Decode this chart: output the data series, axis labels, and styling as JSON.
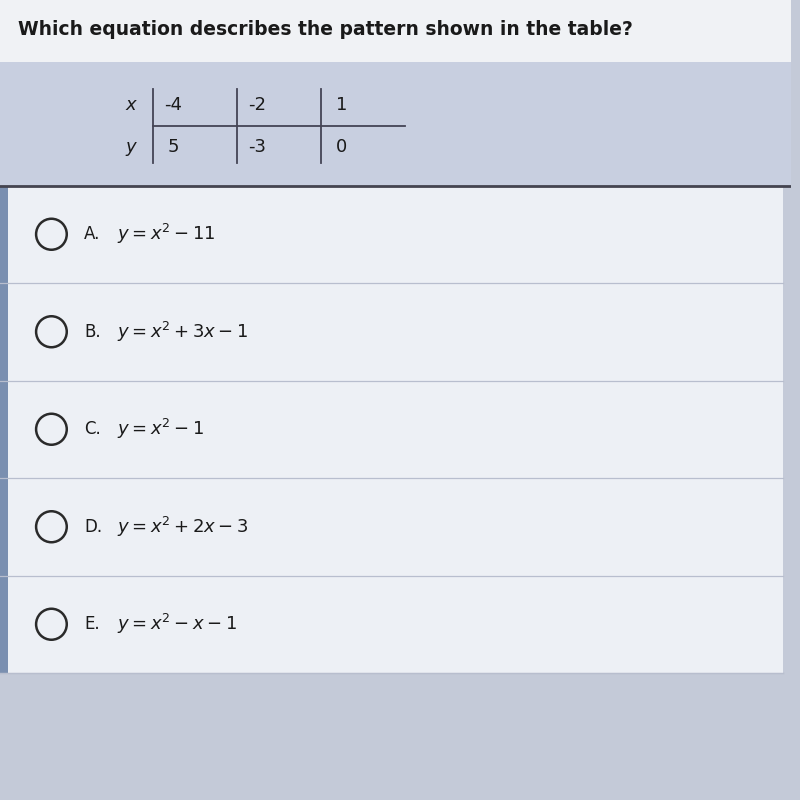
{
  "title": "Which equation describes the pattern shown in the table?",
  "title_fontsize": 13.5,
  "title_color": "#1a1a1a",
  "title_bg": "#f0f2f5",
  "table_bg": "#c8cfe0",
  "table": {
    "row_labels": [
      "x",
      "y"
    ],
    "col1": [
      "-4",
      "5"
    ],
    "col2": [
      "-2",
      "-3"
    ],
    "col3": [
      "1",
      "0"
    ]
  },
  "options": [
    {
      "label": "A.",
      "equation": "$y = x^2 - 11$"
    },
    {
      "label": "B.",
      "equation": "$y = x^2 + 3x - 1$"
    },
    {
      "label": "C.",
      "equation": "$y = x^2 - 1$"
    },
    {
      "label": "D.",
      "equation": "$y = x^2 + 2x - 3$"
    },
    {
      "label": "E.",
      "equation": "$y = x^2 - x - 1$"
    }
  ],
  "option_bg": "#edf0f5",
  "option_border": "#b8bece",
  "left_accent": "#7a8fb0",
  "circle_color": "#2a2a2a",
  "text_color": "#1a1a1a",
  "separator_color": "#666677",
  "overall_bg": "#c4cad8"
}
